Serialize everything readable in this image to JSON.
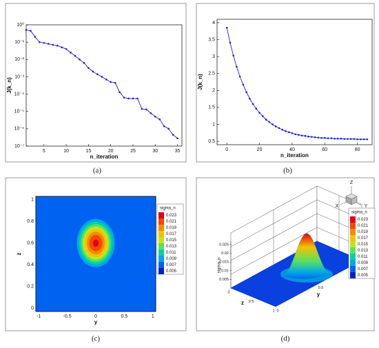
{
  "chart_data": [
    {
      "type": "logline",
      "caption": "(a)",
      "x_label": "n_iteration",
      "y_label": "J(k_n)",
      "color": "#1f1fd0",
      "x": [
        1,
        2,
        3,
        4,
        5,
        6,
        7,
        8,
        9,
        10,
        11,
        12,
        13,
        14,
        15,
        16,
        17,
        18,
        19,
        20,
        21,
        22,
        23,
        24,
        25,
        26,
        27,
        28,
        29,
        30,
        31,
        32,
        33,
        34,
        35
      ],
      "values": [
        0.5,
        0.45,
        0.2,
        0.1,
        0.09,
        0.08,
        0.07,
        0.063,
        0.05,
        0.04,
        0.025,
        0.016,
        0.01,
        0.0063,
        0.0032,
        0.002,
        0.0014,
        0.001,
        0.0007,
        0.0005,
        0.00045,
        0.00013,
        6.3e-05,
        5.6e-05,
        5.6e-05,
        5.6e-05,
        1.4e-05,
        1.3e-05,
        8e-06,
        5e-06,
        3.5e-06,
        1.4e-06,
        1e-06,
        4.5e-07,
        2.8e-07
      ],
      "xlim": [
        1,
        36
      ],
      "xticks": [
        5,
        10,
        15,
        20,
        25,
        30,
        35
      ],
      "ylim": [
        1e-07,
        1
      ],
      "log_y": true,
      "yticks": [
        {
          "value": 1,
          "label": "10⁰"
        },
        {
          "value": 0.1,
          "label": "10⁻¹"
        },
        {
          "value": 0.01,
          "label": "10⁻²"
        },
        {
          "value": 0.001,
          "label": "10⁻³"
        },
        {
          "value": 0.0001,
          "label": "10⁻⁴"
        },
        {
          "value": 1e-05,
          "label": "10⁻⁵"
        },
        {
          "value": 1e-06,
          "label": "10⁻⁶"
        },
        {
          "value": 1e-07,
          "label": "10⁻⁷"
        }
      ]
    },
    {
      "type": "line",
      "caption": "(b)",
      "x_label": "n_iteration",
      "y_label": "J(k_n)",
      "color": "#1f1fd0",
      "x": [
        0,
        2,
        4,
        6,
        8,
        10,
        12,
        14,
        16,
        18,
        20,
        22,
        24,
        26,
        28,
        30,
        32,
        34,
        36,
        38,
        40,
        42,
        44,
        46,
        48,
        50,
        52,
        54,
        56,
        58,
        60,
        62,
        64,
        66,
        68,
        70,
        72,
        74,
        76,
        78,
        80,
        82,
        84,
        86
      ],
      "values": [
        3.85,
        3.41,
        3.03,
        2.7,
        2.41,
        2.17,
        1.95,
        1.76,
        1.6,
        1.46,
        1.34,
        1.24,
        1.14,
        1.07,
        1.0,
        0.94,
        0.89,
        0.84,
        0.8,
        0.77,
        0.74,
        0.71,
        0.69,
        0.67,
        0.66,
        0.64,
        0.63,
        0.62,
        0.61,
        0.6,
        0.6,
        0.59,
        0.59,
        0.58,
        0.58,
        0.58,
        0.57,
        0.57,
        0.57,
        0.57,
        0.56,
        0.56,
        0.56,
        0.56
      ],
      "xlim": [
        -6,
        89
      ],
      "xticks": [
        0,
        20,
        40,
        60,
        80
      ],
      "ylim": [
        0.4,
        4.1
      ],
      "yticks": [
        0.5,
        1,
        1.5,
        2,
        2.5,
        3,
        3.5,
        4
      ]
    },
    {
      "type": "contour",
      "caption": "(c)",
      "x_label": "y",
      "y_label": "z",
      "legend_title": "sigma_n",
      "xlim": [
        -1.05,
        1.05
      ],
      "xticks": [
        -1,
        -0.5,
        0,
        0.5,
        1
      ],
      "ylim": [
        -0.03,
        1.03
      ],
      "yticks": [
        0,
        0.2,
        0.4,
        0.6,
        0.8,
        1
      ],
      "peak": {
        "y": 0,
        "z": 0.6,
        "value": 0.0235
      },
      "levels": [
        0.023,
        0.021,
        0.019,
        0.017,
        0.015,
        0.013,
        0.011,
        0.009,
        0.007,
        0.005
      ],
      "colors": [
        "#e3001b",
        "#f24a00",
        "#f88a00",
        "#f2c400",
        "#c4e41a",
        "#5ee05e",
        "#00d2a6",
        "#00a8e6",
        "#0062f0",
        "#0024c4"
      ]
    },
    {
      "type": "surface",
      "caption": "(d)",
      "z_axis_label": "sigma_n",
      "floor_x_label": "z",
      "floor_y_label": "y",
      "legend_title": "sigma_n",
      "orientation": [
        "Z",
        "X",
        "Y"
      ],
      "zlim": [
        0,
        0.027
      ],
      "zticks": [
        0.005,
        0.01,
        0.015,
        0.02,
        0.025
      ],
      "floor_z_ticks": [
        0,
        0.5,
        1
      ],
      "floor_y_ticks": [
        0,
        0.5,
        1
      ],
      "peak": 0.0235,
      "levels": [
        0.023,
        0.021,
        0.019,
        0.017,
        0.015,
        0.013,
        0.011,
        0.009,
        0.007,
        0.005
      ],
      "colors": [
        "#e3001b",
        "#f24a00",
        "#f88a00",
        "#f2c400",
        "#c4e41a",
        "#5ee05e",
        "#00d2a6",
        "#00a8e6",
        "#0062f0",
        "#0024c4"
      ]
    }
  ]
}
